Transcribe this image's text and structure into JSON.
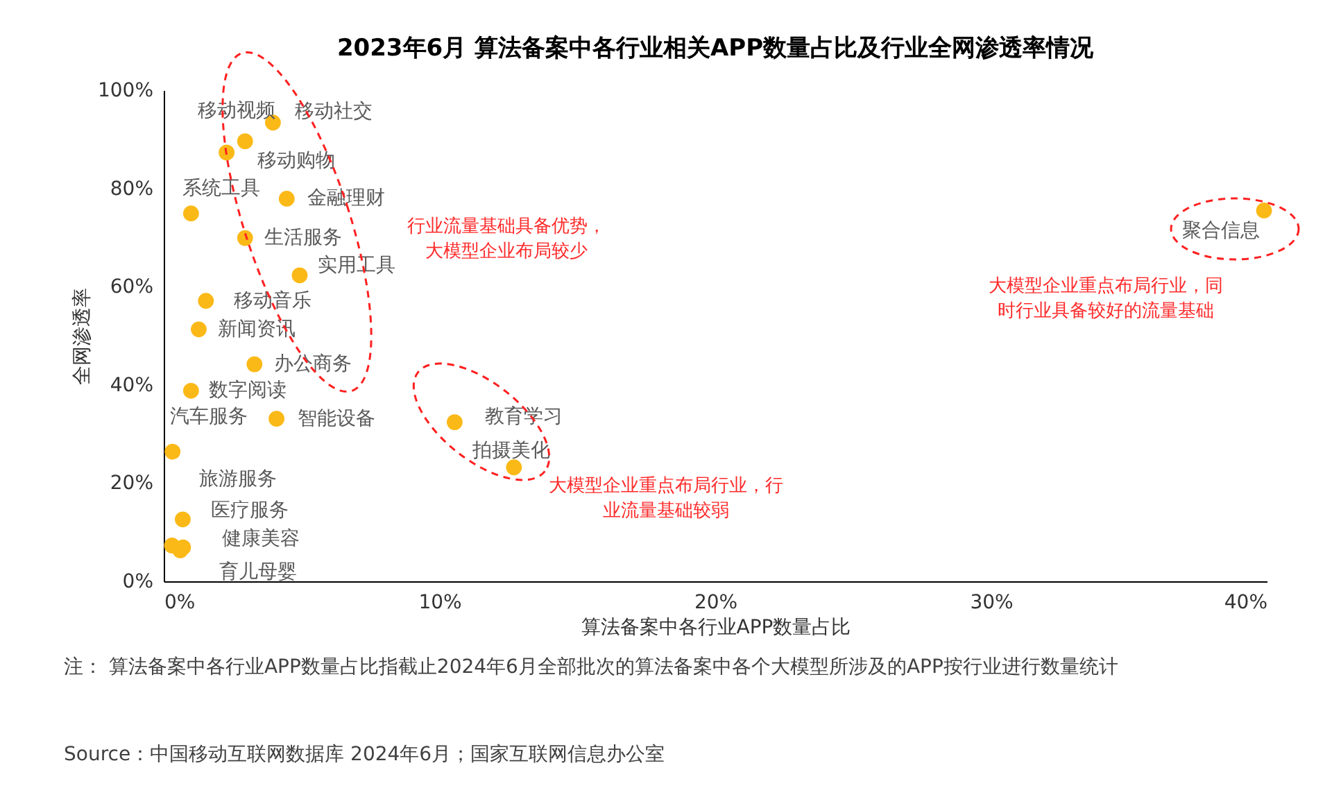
{
  "chart_data": {
    "type": "scatter",
    "title": "2023年6月 算法备案中各行业相关APP数量占比及行业全网渗透率情况",
    "xlabel": "算法备案中各行业APP数量占比",
    "ylabel": "全网渗透率",
    "x": [
      3.96,
      2.95,
      2.28,
      4.46,
      0.99,
      2.95,
      4.93,
      1.53,
      1.27,
      3.29,
      0.99,
      4.09,
      0.32,
      0.69,
      0.3,
      0.7,
      0.6,
      10.55,
      12.7,
      39.9
    ],
    "values": [
      93.4,
      89.6,
      87.3,
      77.9,
      74.9,
      69.9,
      62.3,
      57.1,
      51.3,
      44.2,
      38.8,
      33.1,
      26.4,
      12.6,
      7.3,
      6.9,
      6.3,
      32.4,
      23.2,
      75.5
    ],
    "value_labels": [
      "移动社交",
      "移动视频",
      "移动购物",
      "金融理财",
      "系统工具",
      "生活服务",
      "实用工具",
      "移动音乐",
      "新闻资讯",
      "办公商务",
      "数字阅读",
      "智能设备",
      "汽车服务",
      "旅游服务",
      "医疗服务",
      "健康美容",
      "育儿母婴",
      "教育学习",
      "拍摄美化",
      "聚合信息"
    ],
    "color": "#fbb917",
    "marker": "circle",
    "grid": false,
    "xlim": [
      0,
      40
    ],
    "ylim": [
      0,
      100
    ],
    "xticks": [
      {
        "value": 0,
        "label": "0%"
      },
      {
        "value": 10,
        "label": "10%"
      },
      {
        "value": 20,
        "label": "20%"
      },
      {
        "value": 30,
        "label": "30%"
      },
      {
        "value": 40,
        "label": "40%"
      }
    ],
    "yticks": [
      {
        "value": 0,
        "label": "0%"
      },
      {
        "value": 20,
        "label": "20%"
      },
      {
        "value": 40,
        "label": "40%"
      },
      {
        "value": 60,
        "label": "60%"
      },
      {
        "value": 80,
        "label": "80%"
      },
      {
        "value": 100,
        "label": "100%"
      }
    ],
    "annotations": [
      "行业流量基础具备优势，大模型企业布局较少",
      "大模型企业重点布局行业，行业流量基础较弱",
      "大模型企业重点布局行业，同时行业具备较好的流量基础",
      "注：  算法备案中各行业APP数量占比指截止2024年6月全部批次的算法备案中各个大模型所涉及的APP按行业进行数量统计",
      "Source：中国移动互联网数据库 2024年6月；国家互联网信息办公室"
    ]
  }
}
